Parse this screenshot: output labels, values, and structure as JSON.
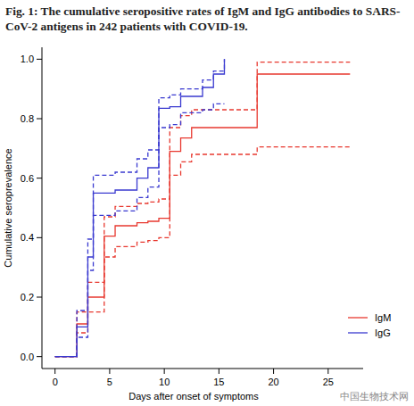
{
  "chart_data": {
    "type": "step",
    "title": "Fig. 1: The cumulative seropositive rates of IgM and IgG antibodies to SARS-CoV-2 antigens in 242 patients with COVID-19.",
    "x_label": "Days after onset of symptoms",
    "y_label": "Cumulative seroprevalence",
    "annotations": [
      "中国生物技术网"
    ],
    "x": [
      0,
      2,
      3,
      3.5,
      4.5,
      5.5,
      7.5,
      8.5,
      9.5,
      10.5,
      11.5,
      12.5,
      13.5,
      14.5,
      15.5,
      18.5,
      27
    ],
    "series": [
      {
        "name": "IgM",
        "color": "#e8382f",
        "line_style": "solid",
        "values": [
          0,
          0.11,
          0.2,
          0.2,
          0.405,
          0.44,
          0.45,
          0.455,
          0.465,
          0.69,
          0.735,
          0.77,
          0.77,
          0.77,
          0.77,
          0.95,
          0.95
        ]
      },
      {
        "color": "#e8382f",
        "line_style": "dashed",
        "values": [
          0,
          0.15,
          0.25,
          0.25,
          0.47,
          0.505,
          0.515,
          0.52,
          0.53,
          0.77,
          0.81,
          0.83,
          0.83,
          0.83,
          0.83,
          0.99,
          0.99
        ]
      },
      {
        "color": "#e8382f",
        "line_style": "dashed",
        "values": [
          0,
          0.08,
          0.15,
          0.15,
          0.335,
          0.37,
          0.385,
          0.39,
          0.4,
          0.61,
          0.655,
          0.68,
          0.68,
          0.68,
          0.68,
          0.705,
          0.705
        ]
      },
      {
        "name": "IgG",
        "color": "#3a3ad0",
        "line_style": "solid",
        "values": [
          0,
          0.1,
          0.335,
          0.55,
          0.55,
          0.56,
          0.6,
          0.635,
          0.835,
          0.84,
          0.875,
          0.875,
          0.905,
          0.95,
          1.0,
          null,
          null
        ]
      },
      {
        "color": "#3a3ad0",
        "line_style": "dashed",
        "values": [
          0,
          0.155,
          0.395,
          0.61,
          0.61,
          0.62,
          0.665,
          0.695,
          0.87,
          0.88,
          0.9,
          0.9,
          0.93,
          0.96,
          1.0,
          null,
          null
        ]
      },
      {
        "color": "#3a3ad0",
        "line_style": "dashed",
        "values": [
          0,
          0.065,
          0.29,
          0.475,
          0.475,
          0.49,
          0.535,
          0.57,
          0.77,
          0.78,
          0.82,
          0.82,
          0.83,
          0.85,
          0.85,
          null,
          null
        ]
      }
    ],
    "xlim": [
      -1.2,
      28.2
    ],
    "ylim": [
      -0.04,
      1.04
    ],
    "xticks": [
      0,
      5,
      10,
      15,
      20,
      25
    ],
    "yticks": [
      {
        "value": 0,
        "label": "0.0"
      },
      {
        "value": 0.2,
        "label": "0.2"
      },
      {
        "value": 0.4,
        "label": "0.4"
      },
      {
        "value": 0.6,
        "label": "0.6"
      },
      {
        "value": 0.8,
        "label": "0.8"
      },
      {
        "value": 1.0,
        "label": "1.0"
      }
    ],
    "grid": false,
    "legend": "bottom-right"
  }
}
